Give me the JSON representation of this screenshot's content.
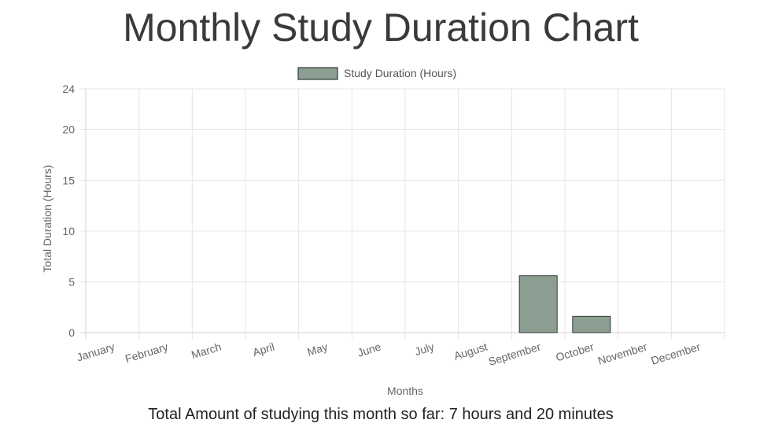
{
  "page": {
    "title": "Monthly Study Duration Chart",
    "summary": "Total Amount of studying this month so far: 7 hours and 20 minutes"
  },
  "chart_data": {
    "type": "bar",
    "categories": [
      "January",
      "February",
      "March",
      "April",
      "May",
      "June",
      "July",
      "August",
      "September",
      "October",
      "November",
      "December"
    ],
    "series": [
      {
        "name": "Study Duration (Hours)",
        "values": [
          0,
          0,
          0,
          0,
          0,
          0,
          0,
          0,
          5.6,
          1.6,
          0,
          0
        ],
        "fill_color": "#8c9e92",
        "border_color": "#2f3d35"
      }
    ],
    "xlabel": "Months",
    "ylabel": "Total Duration (Hours)",
    "ylim": [
      0,
      24
    ],
    "yticks": [
      0,
      5,
      10,
      15,
      20,
      24
    ],
    "grid": true,
    "legend_position": "top-center"
  }
}
